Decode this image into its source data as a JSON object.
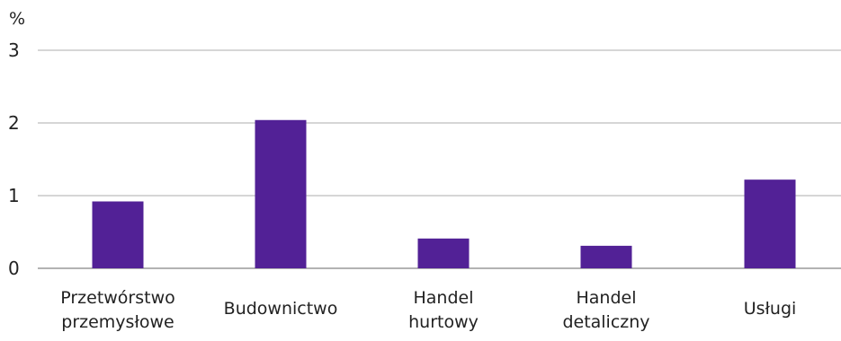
{
  "chart_data": {
    "type": "bar",
    "unit_label": "%",
    "categories": [
      [
        "Przetwórstwo",
        "przemysłowe"
      ],
      [
        "Budownictwo"
      ],
      [
        "Handel",
        "hurtowy"
      ],
      [
        "Handel",
        "detaliczny"
      ],
      [
        "Usługi"
      ]
    ],
    "values": [
      0.92,
      2.04,
      0.41,
      0.31,
      1.22
    ],
    "y_ticks": [
      "0",
      "1",
      "2",
      "3"
    ],
    "ylim": [
      0,
      3
    ],
    "grid": true,
    "legend": "none",
    "colors": {
      "bar": "#522196",
      "grid": "#c9c9c9",
      "text": "#222222"
    }
  }
}
